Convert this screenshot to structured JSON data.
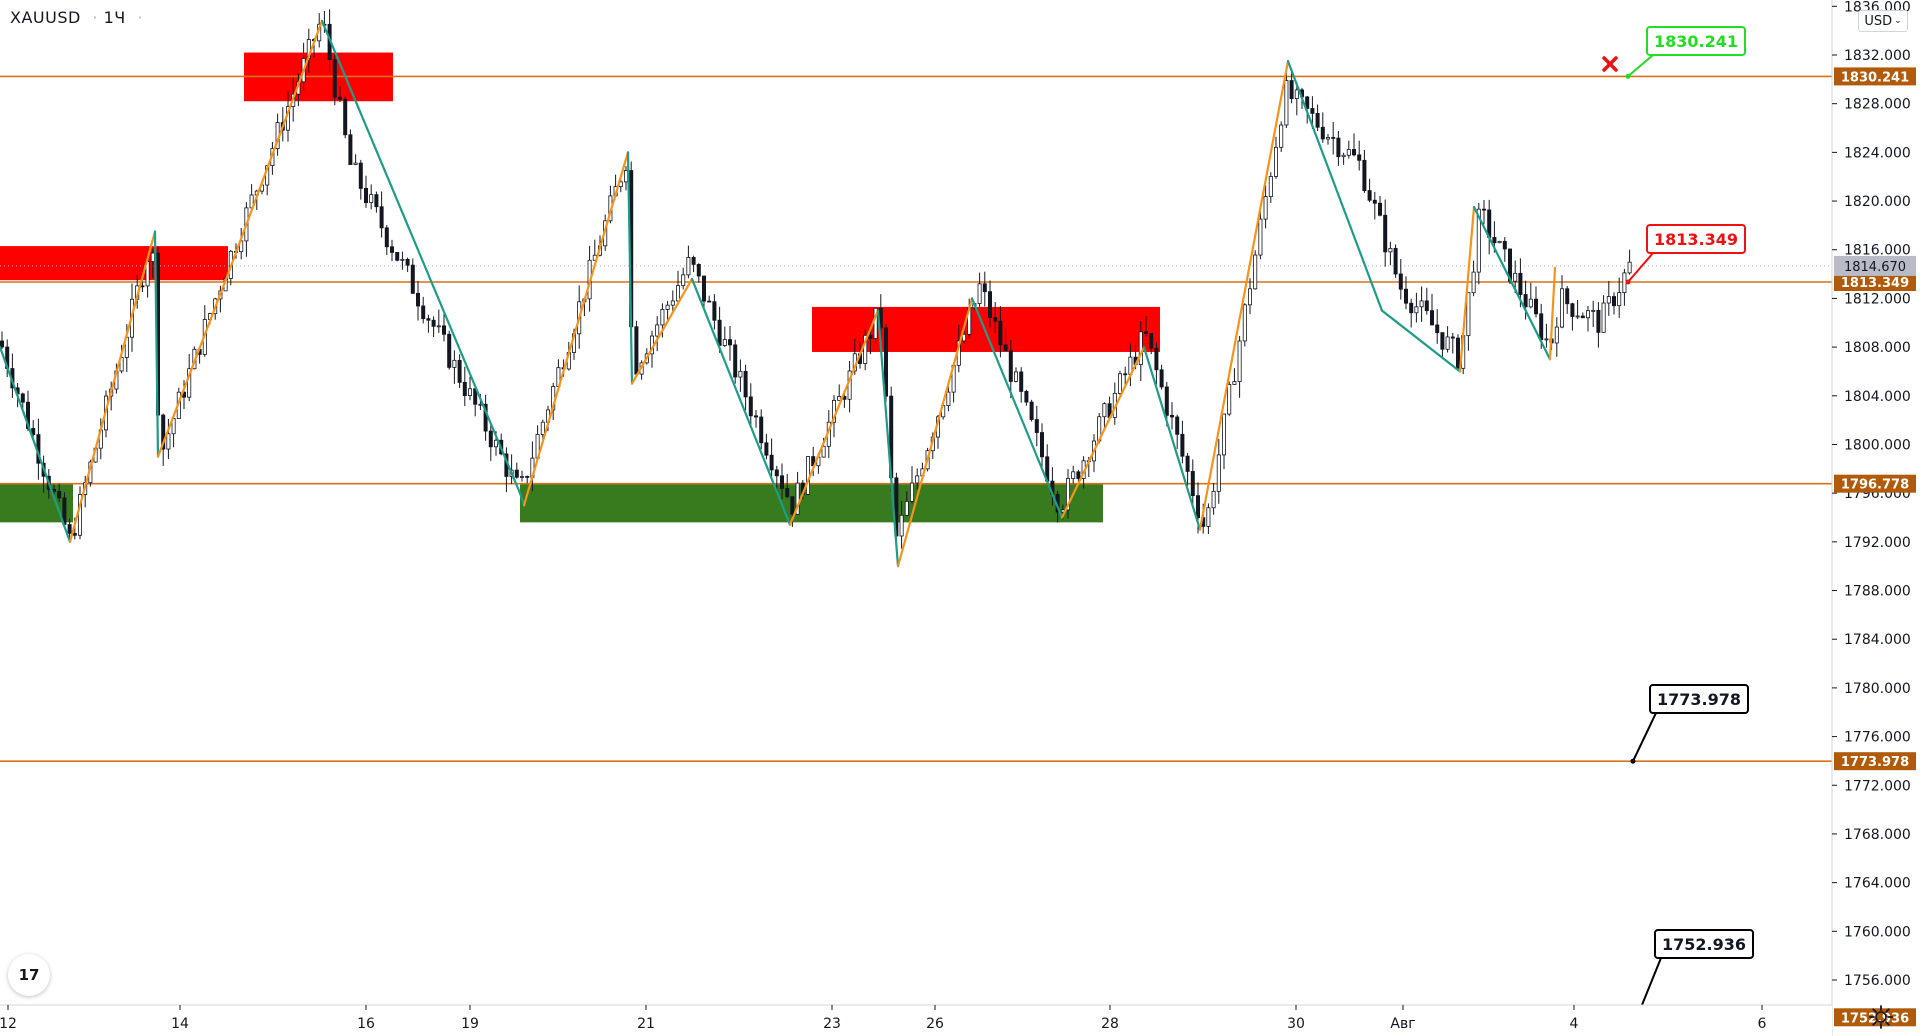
{
  "symbol": {
    "ticker": "XAUUSD",
    "interval": "1Ч"
  },
  "currency_selector": {
    "label": "USD"
  },
  "price_axis": {
    "ticks": [
      "1836.000",
      "1832.000",
      "1828.000",
      "1824.000",
      "1820.000",
      "1816.000",
      "1812.000",
      "1808.000",
      "1804.000",
      "1800.000",
      "1796.000",
      "1792.000",
      "1788.000",
      "1784.000",
      "1780.000",
      "1776.000",
      "1772.000",
      "1768.000",
      "1764.000",
      "1760.000",
      "1756.000"
    ],
    "current_price": "1814.670",
    "level_tags": [
      "1830.241",
      "1813.349",
      "1796.778",
      "1773.978",
      "1752.936"
    ]
  },
  "time_axis": {
    "labels": [
      "12",
      "14",
      "16",
      "19",
      "21",
      "23",
      "26",
      "28",
      "30",
      "Авг",
      "4",
      "6"
    ]
  },
  "levels": [
    {
      "price": 1830.241,
      "label": "1830.241",
      "color": "#b15b0a"
    },
    {
      "price": 1813.349,
      "label": "1813.349",
      "color": "#b15b0a"
    },
    {
      "price": 1796.778,
      "label": "1796.778",
      "color": "#b15b0a"
    },
    {
      "price": 1773.978,
      "label": "1773.978",
      "color": "#b15b0a"
    },
    {
      "price": 1752.936,
      "label": "1752.936",
      "color": "#b15b0a"
    }
  ],
  "callouts": [
    {
      "text": "1830.241",
      "color": "#22dd22"
    },
    {
      "text": "1813.349",
      "color": "#ee1111"
    },
    {
      "text": "1773.978",
      "color": "#000000"
    },
    {
      "text": "1752.936",
      "color": "#000000"
    }
  ],
  "colors": {
    "supply_zone": "#ff0000",
    "demand_zone": "#387a1e",
    "zigzag_up": "#f7931a",
    "zigzag_down": "#1e9c8a",
    "level_line": "#d9701b",
    "candle": "#131722"
  },
  "logo": {
    "text": "17"
  },
  "icons": {
    "settings": "gear-icon",
    "cancel_marker": "x-mark-icon",
    "logo": "tradingview-logo-icon"
  }
}
